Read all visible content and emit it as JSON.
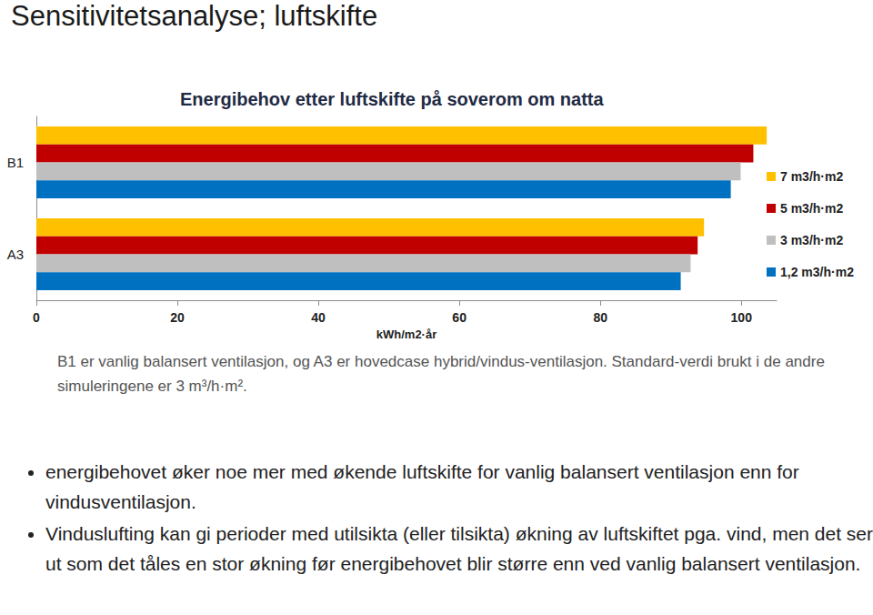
{
  "page": {
    "heading": "Sensitivitetsanalyse; luftskifte",
    "note": "B1 er vanlig balansert ventilasjon, og A3 er hovedcase hybrid/vindus-ventilasjon. Standard-verdi brukt i de andre simuleringene er 3 m³/h·m².",
    "bullets": [
      "energibehovet øker noe mer med økende luftskifte for vanlig balansert ventilasjon enn for vindusventilasjon.",
      "Vinduslufting kan gi perioder med utilsikta (eller tilsikta) økning av luftskiftet pga. vind, men det ser ut som det tåles en stor økning før energibehovet blir større enn ved vanlig balansert ventilasjon."
    ]
  },
  "chart_data": {
    "type": "bar",
    "orientation": "horizontal",
    "title": "Energibehov etter luftskifte på soverom om natta",
    "x_label": "kWh/m2·år",
    "categories": [
      "B1",
      "A3"
    ],
    "series": [
      {
        "name": "7 m3/h·m2",
        "color": "#FFC000",
        "values": [
          103.6,
          94.7
        ]
      },
      {
        "name": "5 m3/h·m2",
        "color": "#C00000",
        "values": [
          101.7,
          93.8
        ]
      },
      {
        "name": "3 m3/h·m2",
        "color": "#BFBFBF",
        "values": [
          99.9,
          92.8
        ]
      },
      {
        "name": "1,2 m3/h·m2",
        "color": "#0070C0",
        "values": [
          98.5,
          91.4
        ]
      }
    ],
    "xlim": [
      0,
      105
    ],
    "xticks": [
      0,
      20,
      40,
      60,
      80,
      100
    ],
    "grid": false,
    "legend": "right",
    "stacked": false,
    "data_labels": false
  }
}
